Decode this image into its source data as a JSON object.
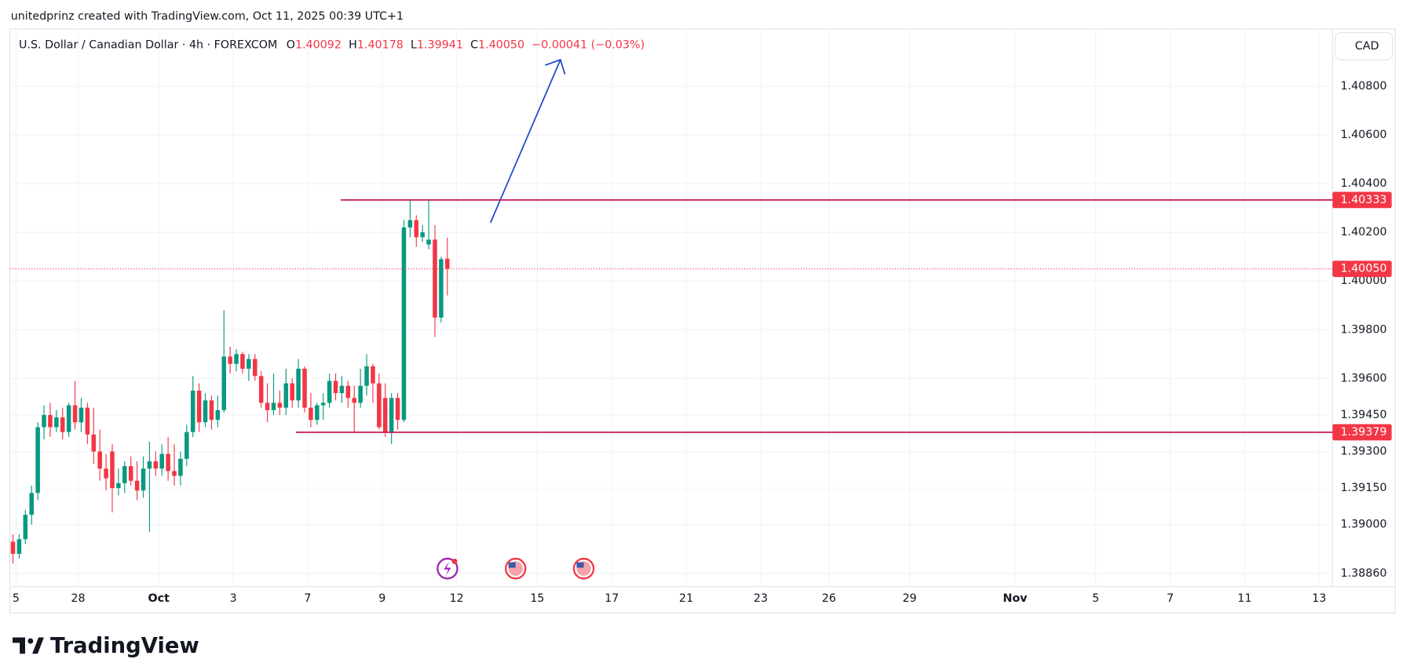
{
  "header": {
    "credit": "unitedprinz created with TradingView.com, Oct 11, 2025 00:39 UTC+1",
    "symbol": "U.S. Dollar / Canadian Dollar · 4h · FOREXCOM",
    "open_label": "O",
    "open": "1.40092",
    "high_label": "H",
    "high": "1.40178",
    "low_label": "L",
    "low": "1.39941",
    "close_label": "C",
    "close": "1.40050",
    "change": "−0.00041 (−0.03%)"
  },
  "currency": "CAD",
  "brand": "TradingView",
  "chart_data": {
    "type": "candlestick",
    "up_color": "#089981",
    "down_color": "#f23645",
    "grid": true,
    "xlim": [
      0,
      213
    ],
    "xticks": [
      {
        "value": 1,
        "label": "5"
      },
      {
        "value": 11,
        "label": "28"
      },
      {
        "value": 24,
        "label": "Oct"
      },
      {
        "value": 36,
        "label": "3"
      },
      {
        "value": 48,
        "label": "7"
      },
      {
        "value": 60,
        "label": "9"
      },
      {
        "value": 72,
        "label": "12"
      },
      {
        "value": 85,
        "label": "15"
      },
      {
        "value": 97,
        "label": "17"
      },
      {
        "value": 109,
        "label": "21"
      },
      {
        "value": 121,
        "label": "23"
      },
      {
        "value": 132,
        "label": "26"
      },
      {
        "value": 145,
        "label": "29"
      },
      {
        "value": 162,
        "label": "Nov"
      },
      {
        "value": 175,
        "label": "5"
      },
      {
        "value": 187,
        "label": "7"
      },
      {
        "value": 199,
        "label": "11"
      },
      {
        "value": 211,
        "label": "13"
      }
    ],
    "ylim": [
      1.38745,
      1.41035
    ],
    "yticks": [
      {
        "value": 1.388,
        "label": "1.38860"
      },
      {
        "value": 1.39,
        "label": "1.39000"
      },
      {
        "value": 1.3915,
        "label": "1.39150"
      },
      {
        "value": 1.393,
        "label": "1.39300"
      },
      {
        "value": 1.3945,
        "label": "1.39450"
      },
      {
        "value": 1.396,
        "label": "1.39600"
      },
      {
        "value": 1.398,
        "label": "1.39800"
      },
      {
        "value": 1.4,
        "label": "1.40000"
      },
      {
        "value": 1.402,
        "label": "1.40200"
      },
      {
        "value": 1.404,
        "label": "1.40400"
      },
      {
        "value": 1.406,
        "label": "1.40600"
      },
      {
        "value": 1.408,
        "label": "1.40800"
      }
    ],
    "levels": [
      {
        "value": 1.40333,
        "label": "1.40333"
      },
      {
        "value": 1.39379,
        "label": "1.39379"
      }
    ],
    "last_price": {
      "value": 1.4005,
      "label": "1.40050"
    },
    "candles": [
      [
        1.3893,
        1.3896,
        1.3884,
        1.3888
      ],
      [
        1.3888,
        1.3896,
        1.3886,
        1.3894
      ],
      [
        1.3894,
        1.3906,
        1.3892,
        1.3904
      ],
      [
        1.3904,
        1.3916,
        1.39,
        1.3913
      ],
      [
        1.3913,
        1.3942,
        1.391,
        1.394
      ],
      [
        1.394,
        1.3949,
        1.3935,
        1.3945
      ],
      [
        1.3945,
        1.395,
        1.3936,
        1.394
      ],
      [
        1.394,
        1.3947,
        1.3938,
        1.3944
      ],
      [
        1.3944,
        1.3948,
        1.3935,
        1.3938
      ],
      [
        1.3938,
        1.395,
        1.3936,
        1.3949
      ],
      [
        1.3949,
        1.3959,
        1.3939,
        1.3942
      ],
      [
        1.3942,
        1.3952,
        1.3938,
        1.3948
      ],
      [
        1.3948,
        1.395,
        1.3933,
        1.3937
      ],
      [
        1.3937,
        1.3948,
        1.3925,
        1.393
      ],
      [
        1.393,
        1.3939,
        1.3918,
        1.3923
      ],
      [
        1.3923,
        1.3929,
        1.3914,
        1.3919
      ],
      [
        1.393,
        1.3933,
        1.3905,
        1.3915
      ],
      [
        1.3915,
        1.3923,
        1.3912,
        1.3917
      ],
      [
        1.3917,
        1.3926,
        1.3913,
        1.3924
      ],
      [
        1.3924,
        1.3928,
        1.3916,
        1.3918
      ],
      [
        1.3918,
        1.3926,
        1.391,
        1.3914
      ],
      [
        1.3914,
        1.3928,
        1.3911,
        1.3923
      ],
      [
        1.3923,
        1.3934,
        1.3897,
        1.3926
      ],
      [
        1.3926,
        1.393,
        1.392,
        1.3923
      ],
      [
        1.3923,
        1.3933,
        1.392,
        1.3929
      ],
      [
        1.3929,
        1.3936,
        1.3918,
        1.3922
      ],
      [
        1.3922,
        1.3933,
        1.3916,
        1.392
      ],
      [
        1.392,
        1.393,
        1.3916,
        1.3927
      ],
      [
        1.3927,
        1.3941,
        1.3924,
        1.3938
      ],
      [
        1.3938,
        1.3961,
        1.3936,
        1.3955
      ],
      [
        1.3955,
        1.3958,
        1.3938,
        1.3942
      ],
      [
        1.3942,
        1.3954,
        1.394,
        1.3951
      ],
      [
        1.3951,
        1.3953,
        1.3939,
        1.3943
      ],
      [
        1.3943,
        1.3953,
        1.394,
        1.3947
      ],
      [
        1.3947,
        1.3988,
        1.3946,
        1.3969
      ],
      [
        1.3969,
        1.3973,
        1.3962,
        1.3966
      ],
      [
        1.3966,
        1.3972,
        1.3963,
        1.397
      ],
      [
        1.397,
        1.3971,
        1.3962,
        1.3964
      ],
      [
        1.3964,
        1.397,
        1.3959,
        1.3968
      ],
      [
        1.3968,
        1.397,
        1.3959,
        1.3961
      ],
      [
        1.3961,
        1.3963,
        1.3948,
        1.395
      ],
      [
        1.395,
        1.3958,
        1.3942,
        1.3947
      ],
      [
        1.3947,
        1.3962,
        1.3945,
        1.395
      ],
      [
        1.395,
        1.3955,
        1.3945,
        1.3948
      ],
      [
        1.3948,
        1.3964,
        1.3945,
        1.3958
      ],
      [
        1.3958,
        1.396,
        1.3948,
        1.3951
      ],
      [
        1.3951,
        1.3968,
        1.3948,
        1.3964
      ],
      [
        1.3964,
        1.3965,
        1.3946,
        1.3948
      ],
      [
        1.3948,
        1.3954,
        1.394,
        1.3943
      ],
      [
        1.3943,
        1.395,
        1.3941,
        1.3949
      ],
      [
        1.3949,
        1.3954,
        1.3943,
        1.395
      ],
      [
        1.395,
        1.3962,
        1.3948,
        1.3959
      ],
      [
        1.3959,
        1.3962,
        1.3951,
        1.3954
      ],
      [
        1.3954,
        1.3961,
        1.395,
        1.3957
      ],
      [
        1.3957,
        1.3959,
        1.3948,
        1.3952
      ],
      [
        1.3952,
        1.3957,
        1.3938,
        1.395
      ],
      [
        1.395,
        1.3964,
        1.3948,
        1.3957
      ],
      [
        1.3957,
        1.397,
        1.3953,
        1.3965
      ],
      [
        1.3965,
        1.3966,
        1.395,
        1.3958
      ],
      [
        1.3958,
        1.3962,
        1.3939,
        1.394
      ],
      [
        1.3952,
        1.3958,
        1.3936,
        1.3938
      ],
      [
        1.3938,
        1.3954,
        1.3933,
        1.3952
      ],
      [
        1.3952,
        1.3954,
        1.3939,
        1.3943
      ],
      [
        1.3943,
        1.4025,
        1.3942,
        1.4022
      ],
      [
        1.4022,
        1.40333,
        1.4018,
        1.4025
      ],
      [
        1.4025,
        1.4027,
        1.4014,
        1.4018
      ],
      [
        1.4018,
        1.4023,
        1.4016,
        1.402
      ],
      [
        1.4015,
        1.40333,
        1.4013,
        1.4017
      ],
      [
        1.4017,
        1.4023,
        1.3977,
        1.3985
      ],
      [
        1.3985,
        1.401,
        1.3983,
        1.4009
      ],
      [
        1.40092,
        1.40178,
        1.39941,
        1.4005
      ]
    ]
  }
}
